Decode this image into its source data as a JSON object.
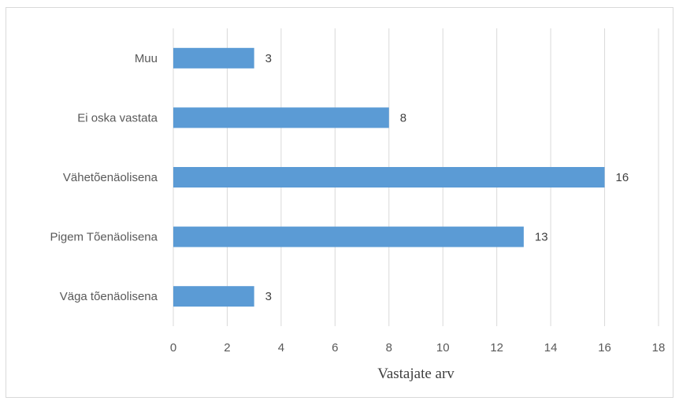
{
  "chart_data": {
    "type": "bar",
    "orientation": "horizontal",
    "categories": [
      "Väga tõenäolisena",
      "Pigem Tõenäolisena",
      "Vähetõenäolisena",
      "Ei oska vastata",
      "Muu"
    ],
    "values": [
      3,
      13,
      16,
      8,
      3
    ],
    "title": "",
    "xlabel": "Vastajate arv",
    "ylabel": "",
    "xlim": [
      0,
      18
    ],
    "xticks": [
      0,
      2,
      4,
      6,
      8,
      10,
      12,
      14,
      16,
      18
    ],
    "grid": true,
    "legend": "none",
    "colors": {
      "bar": "#5b9bd5",
      "grid": "#d9d9d9"
    }
  }
}
